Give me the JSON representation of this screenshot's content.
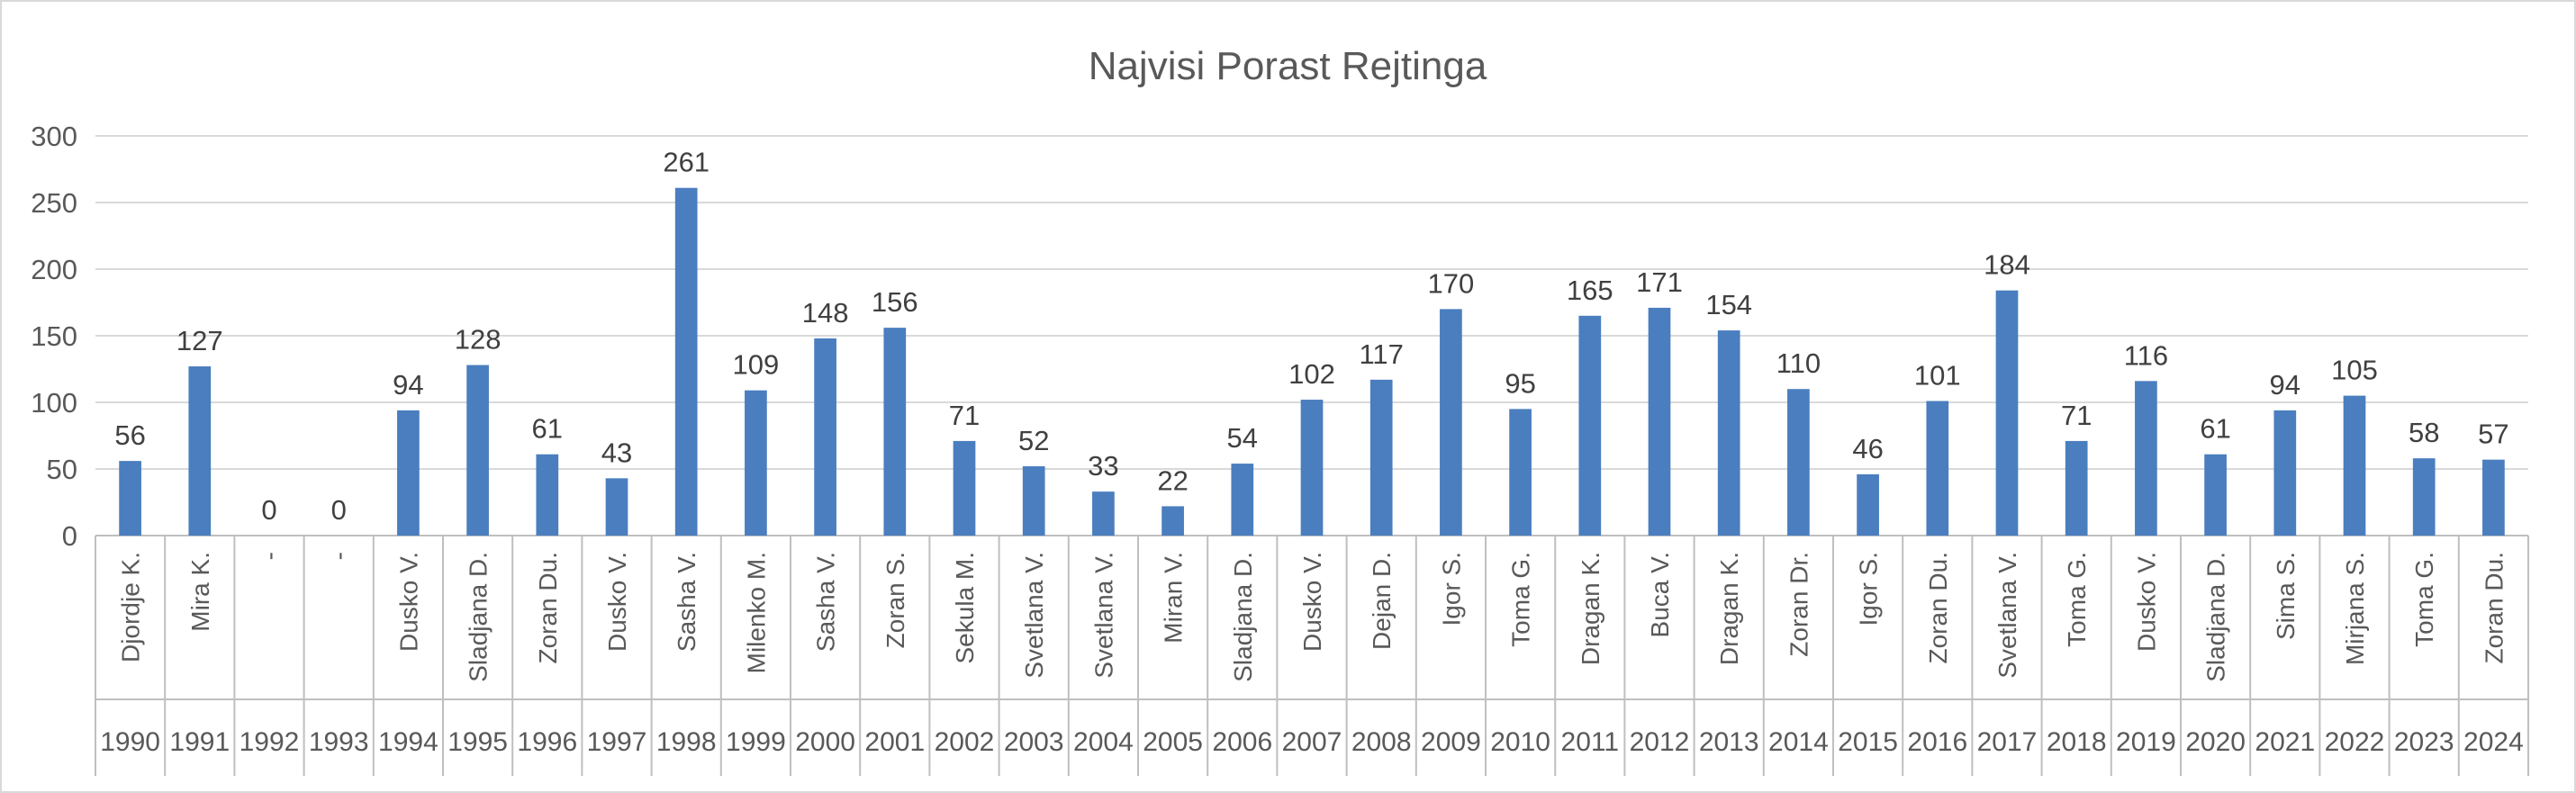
{
  "chart_data": {
    "type": "bar",
    "title": "Najvisi Porast Rejtinga",
    "xlabel": "",
    "ylabel": "",
    "ylim": [
      0,
      300
    ],
    "yticks": [
      0,
      50,
      100,
      150,
      200,
      250,
      300
    ],
    "grid": true,
    "legend": "none",
    "bar_color": "#4a7ebf",
    "categories": [
      {
        "year": "1990",
        "name": "Djordje K."
      },
      {
        "year": "1991",
        "name": "Mira K."
      },
      {
        "year": "1992",
        "name": "-"
      },
      {
        "year": "1993",
        "name": "-"
      },
      {
        "year": "1994",
        "name": "Dusko V."
      },
      {
        "year": "1995",
        "name": "Sladjana D."
      },
      {
        "year": "1996",
        "name": "Zoran Du."
      },
      {
        "year": "1997",
        "name": "Dusko V."
      },
      {
        "year": "1998",
        "name": "Sasha V."
      },
      {
        "year": "1999",
        "name": "Milenko M."
      },
      {
        "year": "2000",
        "name": "Sasha V."
      },
      {
        "year": "2001",
        "name": "Zoran S."
      },
      {
        "year": "2002",
        "name": "Sekula M."
      },
      {
        "year": "2003",
        "name": "Svetlana V."
      },
      {
        "year": "2004",
        "name": "Svetlana V."
      },
      {
        "year": "2005",
        "name": "Miran V."
      },
      {
        "year": "2006",
        "name": "Sladjana D."
      },
      {
        "year": "2007",
        "name": "Dusko V."
      },
      {
        "year": "2008",
        "name": "Dejan D."
      },
      {
        "year": "2009",
        "name": "Igor S."
      },
      {
        "year": "2010",
        "name": "Toma G."
      },
      {
        "year": "2011",
        "name": "Dragan K."
      },
      {
        "year": "2012",
        "name": "Buca V."
      },
      {
        "year": "2013",
        "name": "Dragan K."
      },
      {
        "year": "2014",
        "name": "Zoran Dr."
      },
      {
        "year": "2015",
        "name": "Igor S."
      },
      {
        "year": "2016",
        "name": "Zoran Du."
      },
      {
        "year": "2017",
        "name": "Svetlana V."
      },
      {
        "year": "2018",
        "name": "Toma G."
      },
      {
        "year": "2019",
        "name": "Dusko V."
      },
      {
        "year": "2020",
        "name": "Sladjana D."
      },
      {
        "year": "2021",
        "name": "Sima S."
      },
      {
        "year": "2022",
        "name": "Mirjana S."
      },
      {
        "year": "2023",
        "name": "Toma G."
      },
      {
        "year": "2024",
        "name": "Zoran Du."
      }
    ],
    "values": [
      56,
      127,
      0,
      0,
      94,
      128,
      61,
      43,
      261,
      109,
      148,
      156,
      71,
      52,
      33,
      22,
      54,
      102,
      117,
      170,
      95,
      165,
      171,
      154,
      110,
      46,
      101,
      184,
      71,
      116,
      61,
      94,
      105,
      58,
      57
    ]
  }
}
